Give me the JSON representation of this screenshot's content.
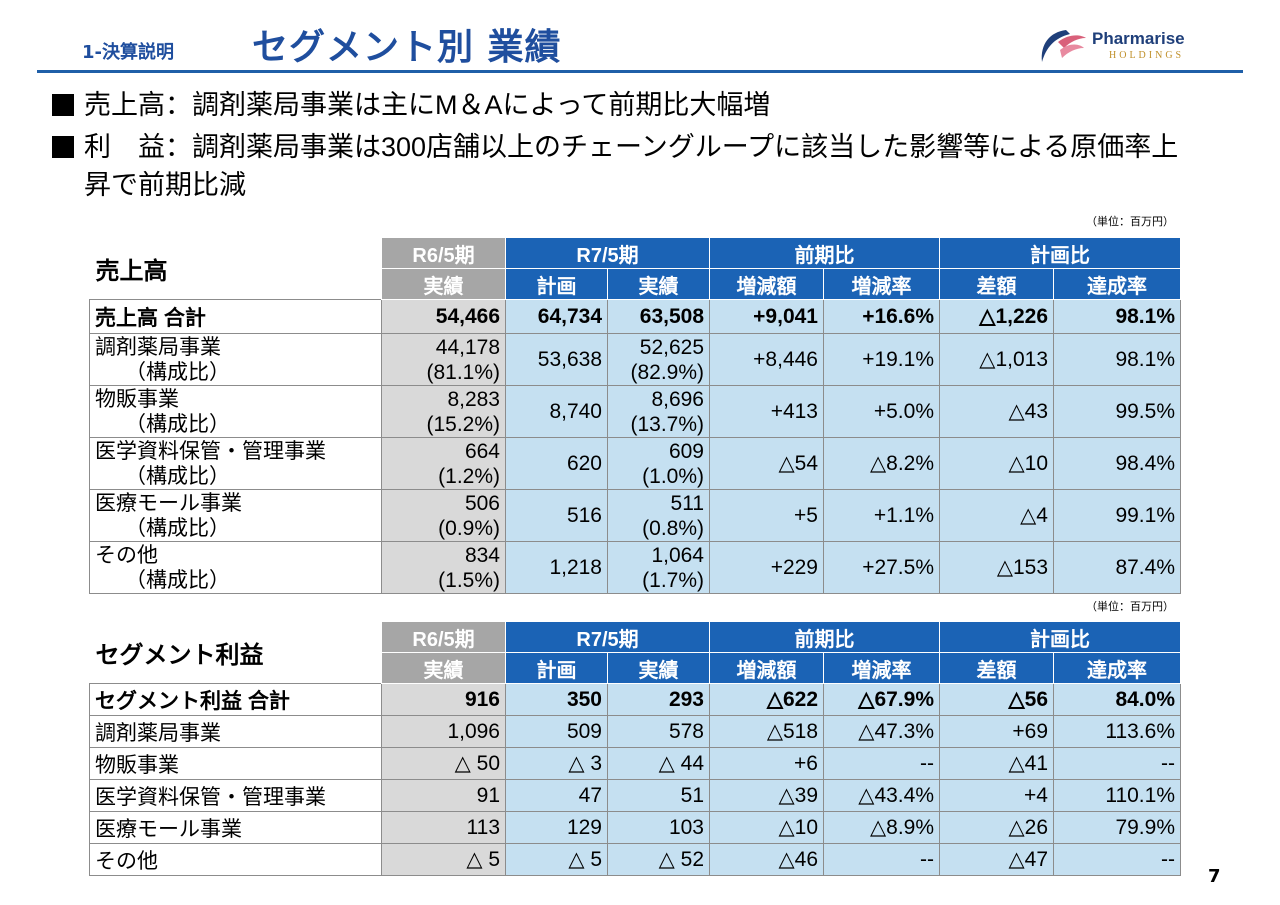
{
  "header": {
    "section_label": "1-決算説明",
    "title": "セグメント別 業績",
    "logo_text": "Pharmarise",
    "logo_sub": "HOLDINGS"
  },
  "bullets": [
    "売上高：調剤薬局事業は主にM＆Aによって前期比大幅増",
    "利　益：調剤薬局事業は300店舗以上のチェーングループに該当した影響等による原価率上昇で前期比減"
  ],
  "unit_note": "（単位：百万円）",
  "sales_table": {
    "title": "売上高",
    "group_headers": [
      "R6/5期",
      "R7/5期",
      "前期比",
      "計画比"
    ],
    "sub_headers": [
      "実績",
      "計画",
      "実績",
      "増減額",
      "増減率",
      "差額",
      "達成率"
    ],
    "total": {
      "label": "売上高 合計",
      "values": [
        "54,466",
        "64,734",
        "63,508",
        "+9,041",
        "+16.6%",
        "△1,226",
        "98.1%"
      ]
    },
    "rows": [
      {
        "label": "調剤薬局事業",
        "sub_label": "（構成比）",
        "prev": "44,178",
        "prev_ratio": "(81.1%)",
        "plan": "53,638",
        "actual": "52,625",
        "actual_ratio": "(82.9%)",
        "diff": "+8,446",
        "rate": "+19.1%",
        "plan_diff": "△1,013",
        "achieve": "98.1%"
      },
      {
        "label": "物販事業",
        "sub_label": "（構成比）",
        "prev": "8,283",
        "prev_ratio": "(15.2%)",
        "plan": "8,740",
        "actual": "8,696",
        "actual_ratio": "(13.7%)",
        "diff": "+413",
        "rate": "+5.0%",
        "plan_diff": "△43",
        "achieve": "99.5%"
      },
      {
        "label": "医学資料保管・管理事業",
        "sub_label": "（構成比）",
        "prev": "664",
        "prev_ratio": "(1.2%)",
        "plan": "620",
        "actual": "609",
        "actual_ratio": "(1.0%)",
        "diff": "△54",
        "rate": "△8.2%",
        "plan_diff": "△10",
        "achieve": "98.4%"
      },
      {
        "label": "医療モール事業",
        "sub_label": "（構成比）",
        "prev": "506",
        "prev_ratio": "(0.9%)",
        "plan": "516",
        "actual": "511",
        "actual_ratio": "(0.8%)",
        "diff": "+5",
        "rate": "+1.1%",
        "plan_diff": "△4",
        "achieve": "99.1%"
      },
      {
        "label": "その他",
        "sub_label": "（構成比）",
        "prev": "834",
        "prev_ratio": "(1.5%)",
        "plan": "1,218",
        "actual": "1,064",
        "actual_ratio": "(1.7%)",
        "diff": "+229",
        "rate": "+27.5%",
        "plan_diff": "△153",
        "achieve": "87.4%"
      }
    ]
  },
  "profit_table": {
    "title": "セグメント利益",
    "group_headers": [
      "R6/5期",
      "R7/5期",
      "前期比",
      "計画比"
    ],
    "sub_headers": [
      "実績",
      "計画",
      "実績",
      "増減額",
      "増減率",
      "差額",
      "達成率"
    ],
    "total": {
      "label": "セグメント利益 合計",
      "values": [
        "916",
        "350",
        "293",
        "△622",
        "△67.9%",
        "△56",
        "84.0%"
      ]
    },
    "rows": [
      {
        "label": "調剤薬局事業",
        "values": [
          "1,096",
          "509",
          "578",
          "△518",
          "△47.3%",
          "+69",
          "113.6%"
        ]
      },
      {
        "label": "物販事業",
        "values": [
          "△ 50",
          "△ 3",
          "△ 44",
          "+6",
          "--",
          "△41",
          "--"
        ]
      },
      {
        "label": "医学資料保管・管理事業",
        "values": [
          "91",
          "47",
          "51",
          "△39",
          "△43.4%",
          "+4",
          "110.1%"
        ]
      },
      {
        "label": "医療モール事業",
        "values": [
          "113",
          "129",
          "103",
          "△10",
          "△8.9%",
          "△26",
          "79.9%"
        ]
      },
      {
        "label": "その他",
        "values": [
          "△ 5",
          "△ 5",
          "△ 52",
          "△46",
          "--",
          "△47",
          "--"
        ]
      }
    ]
  },
  "page_number": "7",
  "colors": {
    "brand_blue": "#1f4e9e",
    "header_blue": "#1b63b5",
    "cell_blue": "#c5e0f1",
    "header_gray": "#a6a6a6",
    "cell_gray": "#d9d9d9"
  }
}
